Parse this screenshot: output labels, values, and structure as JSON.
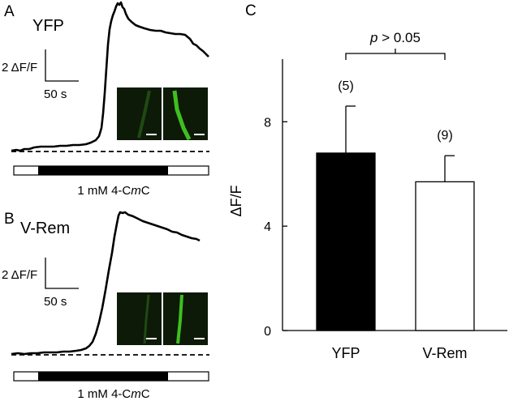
{
  "panels": {
    "a": {
      "letter": "A",
      "label": "YFP",
      "scale_y_label": "2 ΔF/F",
      "scale_x_label": "50 s",
      "stimulus_label": "1 mM 4-CmC",
      "stimulus_label_parts": [
        "1 mM 4-C",
        "m",
        "C"
      ]
    },
    "b": {
      "letter": "B",
      "label": "V-Rem",
      "scale_y_label": "2 ΔF/F",
      "scale_x_label": "50 s",
      "stimulus_label": "1 mM 4-CmC",
      "stimulus_label_parts": [
        "1 mM 4-C",
        "m",
        "C"
      ]
    },
    "c": {
      "letter": "C"
    }
  },
  "colors": {
    "bar_yfp": "#000000",
    "bar_vrem": "#ffffff",
    "inset_fluorescence": "#3fbf1f",
    "inset_background": "#0d1a08"
  },
  "chart_data": {
    "type": "bar",
    "title": "",
    "xlabel": "",
    "ylabel": "ΔF/F",
    "categories": [
      "YFP",
      "V-Rem"
    ],
    "values": [
      6.8,
      5.7
    ],
    "errors": [
      1.8,
      1.0
    ],
    "n_labels": [
      "(5)",
      "(9)"
    ],
    "ylim": [
      0,
      10.4
    ],
    "yticks": [
      0,
      4,
      8
    ],
    "ytick_labels": [
      "0",
      "4",
      "8"
    ],
    "significance": {
      "between": [
        "YFP",
        "V-Rem"
      ],
      "label": "p > 0.05",
      "label_parts": [
        "p",
        " > 0.05"
      ]
    }
  }
}
